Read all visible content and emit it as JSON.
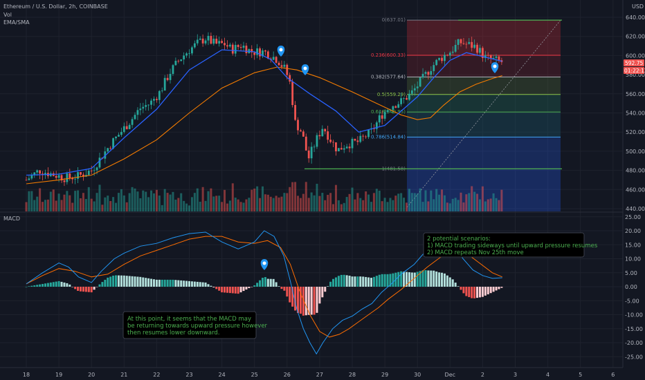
{
  "header": {
    "symbol": "Ethereum / U.S. Dollar, 2h, COINBASE",
    "vol_label": "Vol",
    "ma_label": "EMA/SMA",
    "currency": "USD",
    "macd_label": "MACD"
  },
  "price_tags": {
    "last": "592.75",
    "countdown": "01:22:12"
  },
  "annotations": {
    "macd_note_lines": [
      "At this point, it seems that the MACD may",
      "be returning towards upward pressure however",
      "then resumes lower downward."
    ],
    "scenario_note_lines": [
      "2 potential scenarios:",
      "1) MACD trading sideways until upward pressure resumes",
      "2) MACD repeats Nov 25th move"
    ]
  },
  "colors": {
    "up": "#26a69a",
    "down": "#ef5350",
    "ema": "#2962ff",
    "sma": "#f57c00",
    "macd_line": "#2196f3",
    "signal_line": "#ff6d00",
    "annotation_text": "#4caf50",
    "fib_top_zone": "#b22833",
    "fib_bottom_zone": "#2962ff",
    "pin": "#2196f3"
  },
  "chart_data": [
    {
      "type": "candlestick",
      "title": "Ethereum / U.S. Dollar, 2h, COINBASE",
      "y_unit": "USD",
      "ylim": [
        440,
        645
      ],
      "y_ticks": [
        440,
        460,
        480,
        500,
        520,
        540,
        560,
        580,
        600,
        620,
        640
      ],
      "x_tick_labels": [
        "18",
        "19",
        "20",
        "21",
        "22",
        "23",
        "24",
        "25",
        "26",
        "27",
        "28",
        "29",
        "30",
        "Dec",
        "2",
        "3",
        "4",
        "5",
        "6"
      ],
      "price_path": [
        [
          18,
          470
        ],
        [
          18.4,
          480
        ],
        [
          18.8,
          476
        ],
        [
          19.2,
          472
        ],
        [
          19.6,
          474
        ],
        [
          20,
          480
        ],
        [
          20.3,
          494
        ],
        [
          20.6,
          508
        ],
        [
          20.9,
          520
        ],
        [
          21.2,
          532
        ],
        [
          21.5,
          545
        ],
        [
          21.8,
          550
        ],
        [
          22.1,
          562
        ],
        [
          22.4,
          582
        ],
        [
          22.7,
          596
        ],
        [
          23,
          606
        ],
        [
          23.3,
          614
        ],
        [
          23.5,
          618
        ],
        [
          23.8,
          612
        ],
        [
          24.1,
          612
        ],
        [
          24.3,
          606
        ],
        [
          24.6,
          611
        ],
        [
          24.9,
          604
        ],
        [
          25.3,
          604
        ],
        [
          25.7,
          596
        ],
        [
          25.95,
          585
        ],
        [
          26.1,
          570
        ],
        [
          26.25,
          530
        ],
        [
          26.45,
          520
        ],
        [
          26.65,
          492
        ],
        [
          26.9,
          512
        ],
        [
          27.1,
          526
        ],
        [
          27.3,
          514
        ],
        [
          27.55,
          501
        ],
        [
          27.8,
          507
        ],
        [
          28.2,
          510
        ],
        [
          28.6,
          521
        ],
        [
          28.9,
          538
        ],
        [
          29.2,
          548
        ],
        [
          29.5,
          552
        ],
        [
          29.8,
          560
        ],
        [
          30.1,
          573
        ],
        [
          30.4,
          587
        ],
        [
          30.7,
          597
        ],
        [
          31.0,
          604
        ],
        [
          31.3,
          614
        ],
        [
          31.5,
          612
        ],
        [
          31.8,
          609
        ],
        [
          32.1,
          597
        ],
        [
          32.4,
          595
        ],
        [
          32.6,
          593
        ]
      ],
      "ema_path": [
        [
          18,
          475
        ],
        [
          19,
          476
        ],
        [
          20,
          482
        ],
        [
          21,
          514
        ],
        [
          22,
          544
        ],
        [
          23,
          585
        ],
        [
          24,
          606
        ],
        [
          25,
          604
        ],
        [
          25.5,
          596
        ],
        [
          26,
          577
        ],
        [
          26.7,
          560
        ],
        [
          27.5,
          542
        ],
        [
          28.2,
          520
        ],
        [
          29,
          527
        ],
        [
          30,
          557
        ],
        [
          30.5,
          577
        ],
        [
          31.0,
          595
        ],
        [
          31.5,
          603
        ],
        [
          32,
          599
        ],
        [
          32.6,
          594
        ]
      ],
      "sma_path": [
        [
          18,
          466
        ],
        [
          19,
          470
        ],
        [
          20,
          475
        ],
        [
          21,
          492
        ],
        [
          22,
          512
        ],
        [
          23,
          540
        ],
        [
          24,
          566
        ],
        [
          25,
          582
        ],
        [
          25.7,
          588
        ],
        [
          26.3,
          585
        ],
        [
          27,
          577
        ],
        [
          28,
          562
        ],
        [
          29,
          546
        ],
        [
          29.5,
          538
        ],
        [
          30,
          533
        ],
        [
          30.4,
          535
        ],
        [
          30.8,
          548
        ],
        [
          31.3,
          562
        ],
        [
          31.8,
          570
        ],
        [
          32.3,
          576
        ],
        [
          32.6,
          579
        ]
      ],
      "volume_note": "volume bars shown at the bottom of the price pane",
      "fibonacci_retracement": {
        "from": 637.01,
        "to": 481.58,
        "levels": [
          {
            "ratio": "0",
            "price": "637.01"
          },
          {
            "ratio": "0.236",
            "price": "600.33"
          },
          {
            "ratio": "0.382",
            "price": "577.64"
          },
          {
            "ratio": "0.5",
            "price": "559.29"
          },
          {
            "ratio": "0.618",
            "price": "540.95"
          },
          {
            "ratio": "0.786",
            "price": "514.84"
          },
          {
            "ratio": "1",
            "price": "481.58"
          }
        ]
      }
    },
    {
      "type": "line",
      "title": "MACD",
      "ylim": [
        -28,
        26
      ],
      "y_ticks": [
        25,
        20,
        15,
        10,
        5,
        0,
        -5,
        -10,
        -15,
        -20,
        -25
      ],
      "macd_path": [
        [
          18,
          1
        ],
        [
          18.5,
          5
        ],
        [
          19,
          8.5
        ],
        [
          19.3,
          7
        ],
        [
          19.6,
          3.5
        ],
        [
          20,
          1.5
        ],
        [
          20.3,
          5.5
        ],
        [
          20.7,
          10
        ],
        [
          21,
          12
        ],
        [
          21.5,
          14.5
        ],
        [
          22,
          15.5
        ],
        [
          22.5,
          17.5
        ],
        [
          23,
          19
        ],
        [
          23.5,
          19.5
        ],
        [
          24,
          16
        ],
        [
          24.5,
          13.5
        ],
        [
          25,
          16
        ],
        [
          25.3,
          20
        ],
        [
          25.6,
          18
        ],
        [
          25.9,
          11
        ],
        [
          26.1,
          2
        ],
        [
          26.3,
          -8
        ],
        [
          26.5,
          -15
        ],
        [
          26.7,
          -20
        ],
        [
          26.9,
          -24
        ],
        [
          27.1,
          -20
        ],
        [
          27.4,
          -15
        ],
        [
          27.7,
          -12
        ],
        [
          28,
          -10.5
        ],
        [
          28.3,
          -8
        ],
        [
          28.6,
          -6
        ],
        [
          28.9,
          -2
        ],
        [
          29.2,
          1
        ],
        [
          29.5,
          4.5
        ],
        [
          29.9,
          8
        ],
        [
          30.2,
          12
        ],
        [
          30.5,
          14.5
        ],
        [
          30.8,
          16
        ],
        [
          31.1,
          15
        ],
        [
          31.4,
          10
        ],
        [
          31.7,
          6
        ],
        [
          32,
          4
        ],
        [
          32.3,
          3
        ],
        [
          32.6,
          3.2
        ]
      ],
      "signal_path": [
        [
          18,
          1
        ],
        [
          18.5,
          4
        ],
        [
          19,
          6.5
        ],
        [
          19.5,
          5.5
        ],
        [
          20,
          3.5
        ],
        [
          20.5,
          4.5
        ],
        [
          21,
          8
        ],
        [
          21.5,
          11
        ],
        [
          22,
          13
        ],
        [
          22.5,
          15
        ],
        [
          23,
          17
        ],
        [
          23.5,
          18
        ],
        [
          24,
          18
        ],
        [
          24.5,
          16
        ],
        [
          25,
          15.5
        ],
        [
          25.4,
          16.5
        ],
        [
          25.8,
          14
        ],
        [
          26.1,
          8
        ],
        [
          26.4,
          -2
        ],
        [
          26.7,
          -10
        ],
        [
          27,
          -16
        ],
        [
          27.3,
          -18
        ],
        [
          27.6,
          -17
        ],
        [
          27.9,
          -15
        ],
        [
          28.2,
          -12.5
        ],
        [
          28.5,
          -10
        ],
        [
          28.8,
          -7.5
        ],
        [
          29.1,
          -4.5
        ],
        [
          29.5,
          -1
        ],
        [
          29.9,
          3
        ],
        [
          30.3,
          7
        ],
        [
          30.7,
          10.5
        ],
        [
          31.1,
          12.5
        ],
        [
          31.5,
          12
        ],
        [
          31.9,
          8.5
        ],
        [
          32.3,
          5
        ],
        [
          32.6,
          3.5
        ]
      ],
      "histogram_note": "histogram = MACD minus signal"
    }
  ]
}
